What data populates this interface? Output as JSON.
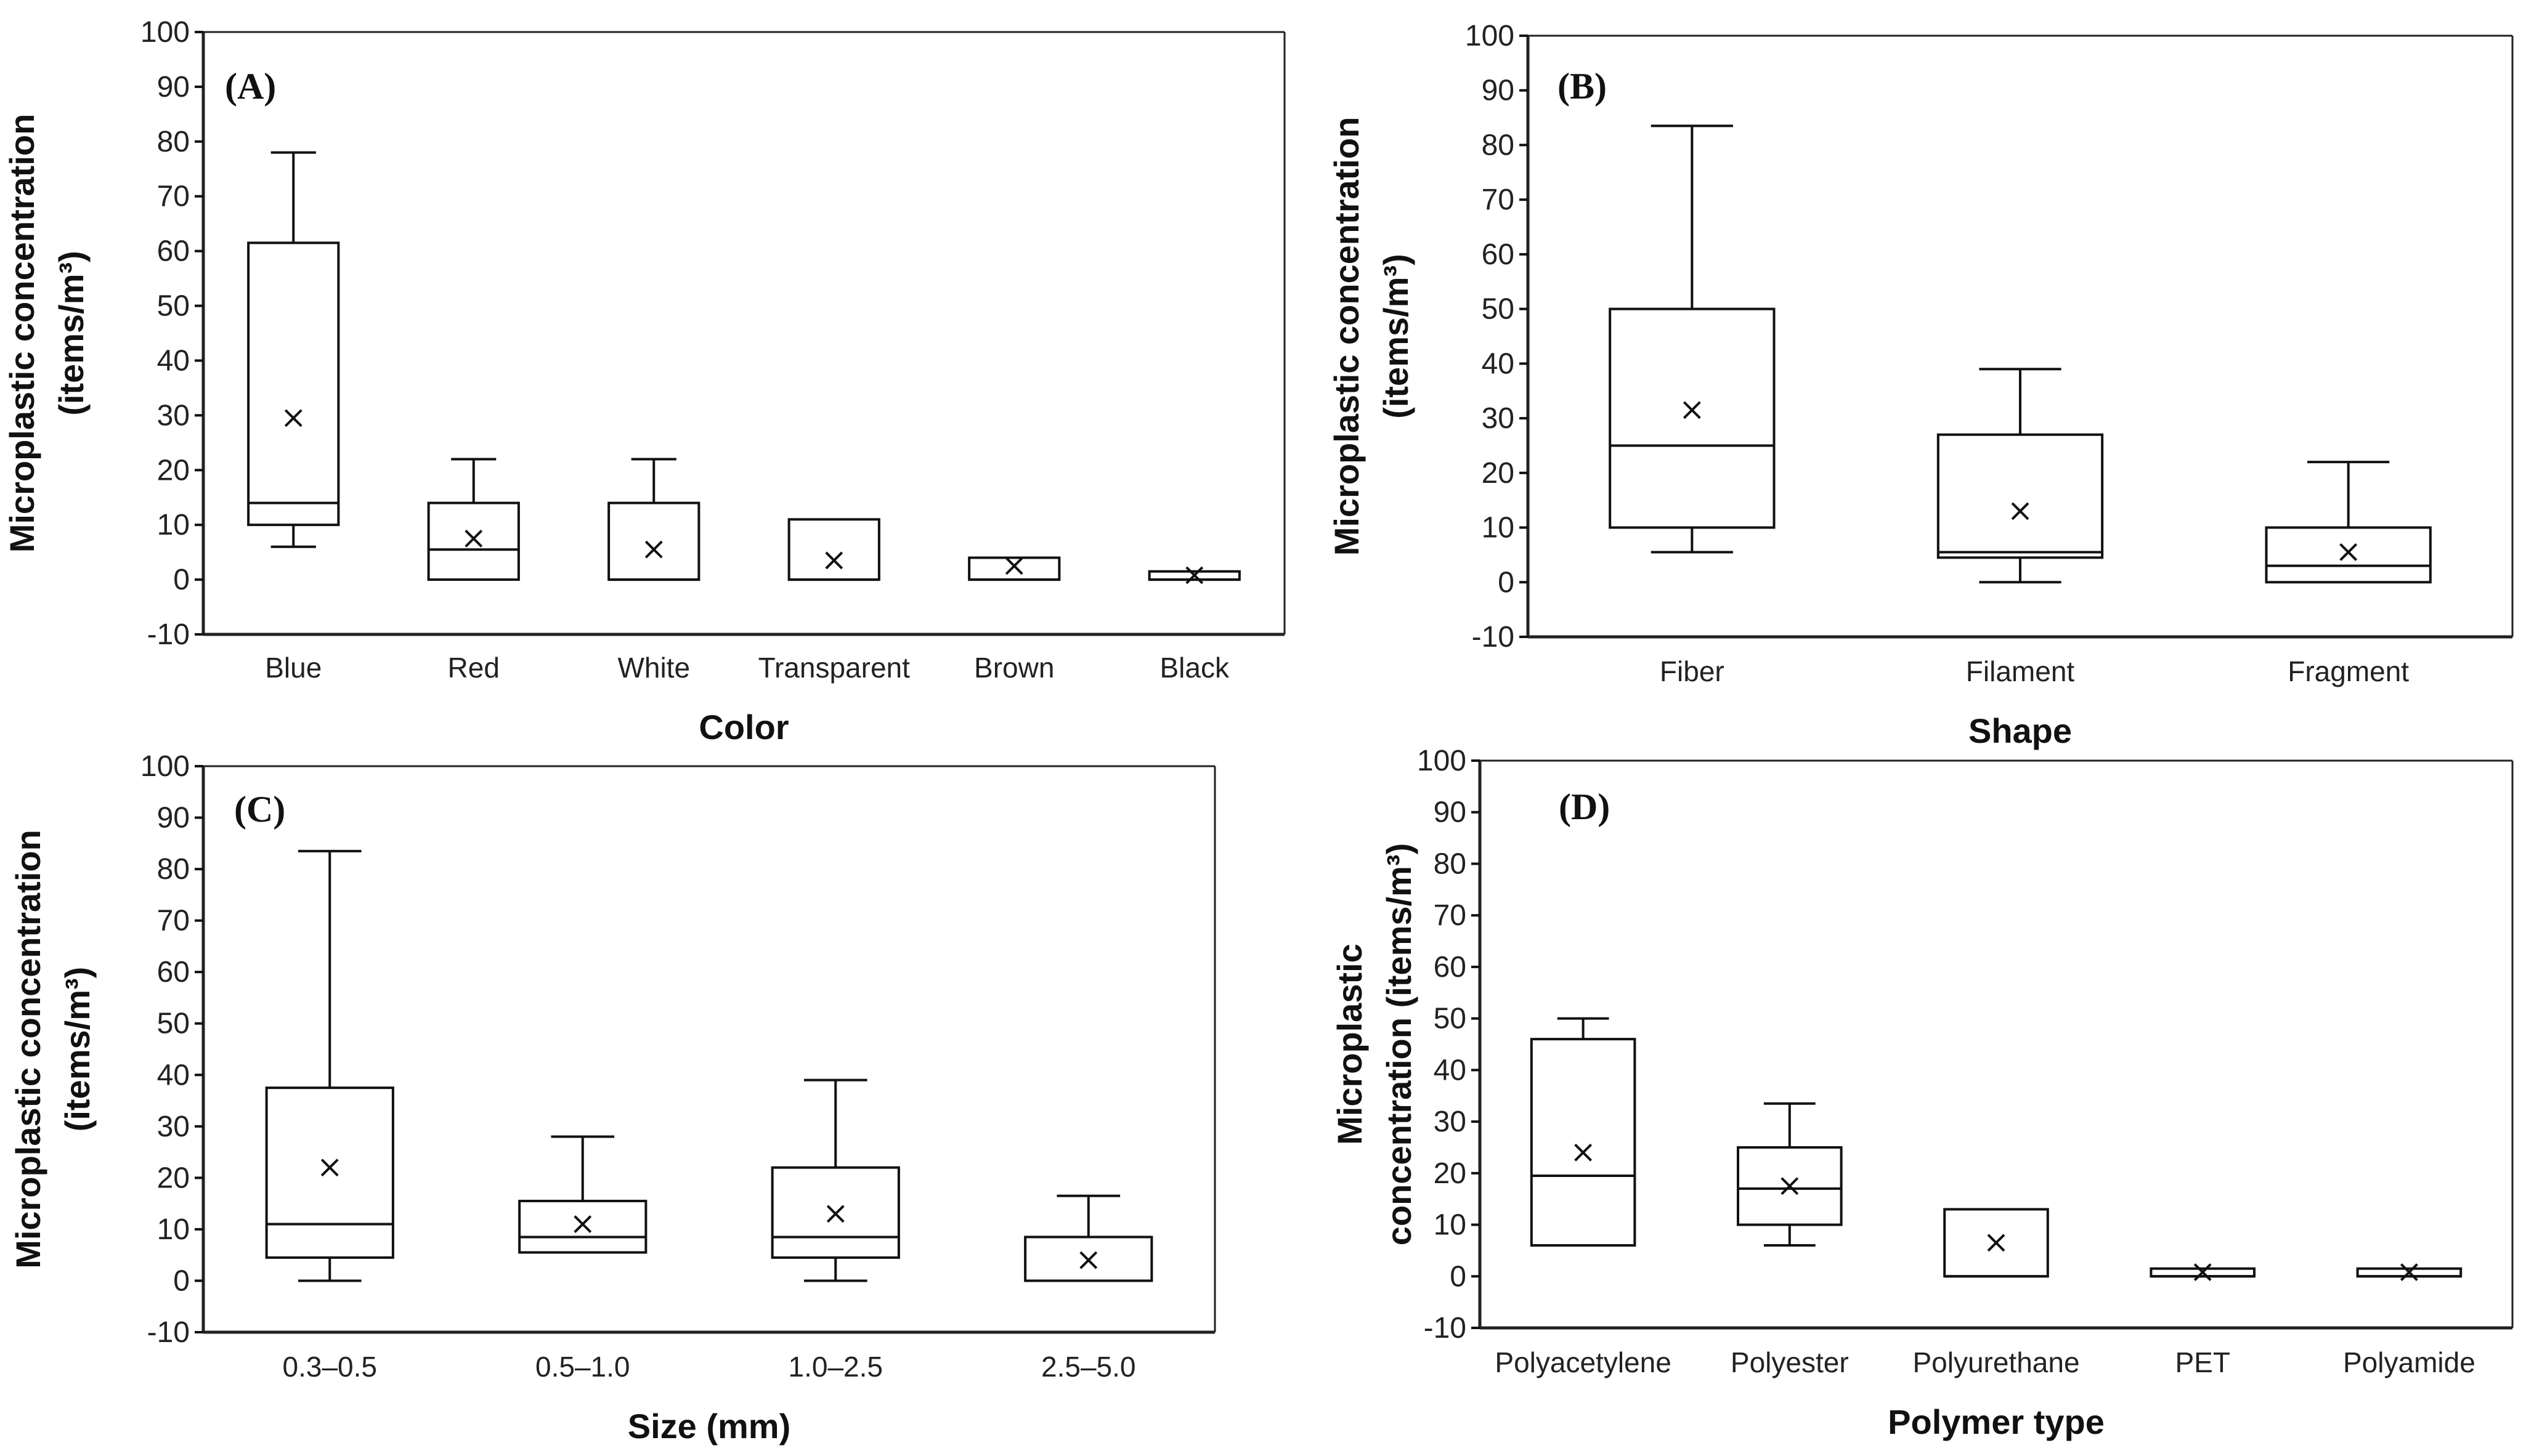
{
  "chart_data": [
    {
      "type": "box",
      "panel_label": "(A)",
      "xlabel": "Color",
      "ylabel_lines": [
        "Microplastic concentration",
        "(items/m³)"
      ],
      "ylim": [
        -10,
        100
      ],
      "yticks": [
        -10,
        0,
        10,
        20,
        30,
        40,
        50,
        60,
        70,
        80,
        90,
        100
      ],
      "categories": [
        "Blue",
        "Red",
        "White",
        "Transparent",
        "Brown",
        "Black"
      ],
      "boxes": [
        {
          "whisker_low": 6,
          "q1": 10,
          "median": 14,
          "q3": 61.5,
          "whisker_high": 78,
          "mean": 29.5
        },
        {
          "whisker_low": 0,
          "q1": 0,
          "median": 5.5,
          "q3": 14,
          "whisker_high": 22,
          "mean": 7.5
        },
        {
          "whisker_low": 0,
          "q1": 0,
          "median": 0,
          "q3": 14,
          "whisker_high": 22,
          "mean": 5.5
        },
        {
          "whisker_low": 0,
          "q1": 0,
          "median": 0,
          "q3": 11,
          "whisker_high": 11,
          "mean": 3.5
        },
        {
          "whisker_low": 0,
          "q1": 0,
          "median": 0,
          "q3": 4,
          "whisker_high": 4,
          "mean": 2.5
        },
        {
          "whisker_low": 0,
          "q1": 0,
          "median": 0,
          "q3": 1.5,
          "whisker_high": 1.5,
          "mean": 0.8
        }
      ]
    },
    {
      "type": "box",
      "panel_label": "(B)",
      "xlabel": "Shape",
      "ylabel_lines": [
        "Microplastic concentration",
        "(items/m³)"
      ],
      "ylim": [
        -10,
        100
      ],
      "yticks": [
        -10,
        0,
        10,
        20,
        30,
        40,
        50,
        60,
        70,
        80,
        90,
        100
      ],
      "categories": [
        "Fiber",
        "Filament",
        "Fragment"
      ],
      "boxes": [
        {
          "whisker_low": 5.5,
          "q1": 10,
          "median": 25,
          "q3": 50,
          "whisker_high": 83.5,
          "mean": 31.5
        },
        {
          "whisker_low": 0,
          "q1": 4.5,
          "median": 5.5,
          "q3": 27,
          "whisker_high": 39,
          "mean": 13
        },
        {
          "whisker_low": 0,
          "q1": 0,
          "median": 3,
          "q3": 10,
          "whisker_high": 22,
          "mean": 5.5
        }
      ]
    },
    {
      "type": "box",
      "panel_label": "(C)",
      "xlabel": "Size (mm)",
      "ylabel_lines": [
        "Microplastic concentration",
        "(items/m³)"
      ],
      "ylim": [
        -10,
        100
      ],
      "yticks": [
        -10,
        0,
        10,
        20,
        30,
        40,
        50,
        60,
        70,
        80,
        90,
        100
      ],
      "categories": [
        "0.3–0.5",
        "0.5–1.0",
        "1.0–2.5",
        "2.5–5.0"
      ],
      "boxes": [
        {
          "whisker_low": 0,
          "q1": 4.5,
          "median": 11,
          "q3": 37.5,
          "whisker_high": 83.5,
          "mean": 22
        },
        {
          "whisker_low": 5.5,
          "q1": 5.5,
          "median": 8.5,
          "q3": 15.5,
          "whisker_high": 28,
          "mean": 11
        },
        {
          "whisker_low": 0,
          "q1": 4.5,
          "median": 8.5,
          "q3": 22,
          "whisker_high": 39,
          "mean": 13
        },
        {
          "whisker_low": 0,
          "q1": 0,
          "median": 0,
          "q3": 8.5,
          "whisker_high": 16.5,
          "mean": 4
        }
      ]
    },
    {
      "type": "box",
      "panel_label": "(D)",
      "xlabel": "Polymer type",
      "ylabel_lines": [
        "Microplastic",
        "concentration (items/m³)"
      ],
      "ylim": [
        -10,
        100
      ],
      "yticks": [
        -10,
        0,
        10,
        20,
        30,
        40,
        50,
        60,
        70,
        80,
        90,
        100
      ],
      "categories": [
        "Polyacetylene",
        "Polyester",
        "Polyurethane",
        "PET",
        "Polyamide"
      ],
      "boxes": [
        {
          "whisker_low": 6,
          "q1": 6,
          "median": 19.5,
          "q3": 46,
          "whisker_high": 50,
          "mean": 24
        },
        {
          "whisker_low": 6,
          "q1": 10,
          "median": 17,
          "q3": 25,
          "whisker_high": 33.5,
          "mean": 17.5
        },
        {
          "whisker_low": 0,
          "q1": 0,
          "median": 0,
          "q3": 13,
          "whisker_high": 13,
          "mean": 6.5
        },
        {
          "whisker_low": 0,
          "q1": 0,
          "median": 0,
          "q3": 1.5,
          "whisker_high": 1.5,
          "mean": 0.8
        },
        {
          "whisker_low": 0,
          "q1": 0,
          "median": 0,
          "q3": 1.5,
          "whisker_high": 1.5,
          "mean": 0.8
        }
      ]
    }
  ]
}
